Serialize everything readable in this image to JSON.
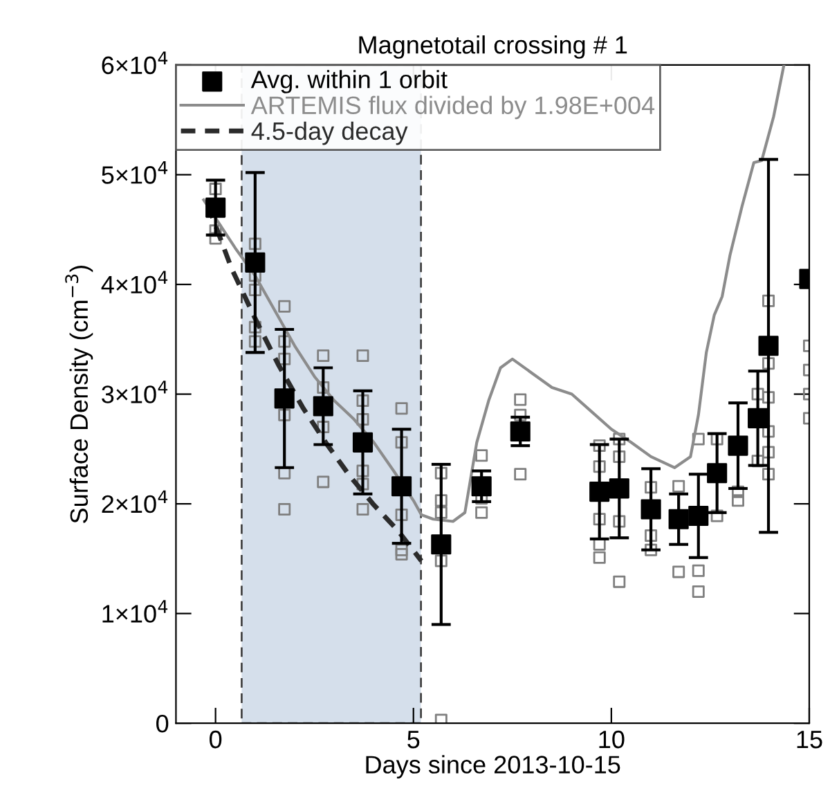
{
  "chart_data": {
    "type": "scatter",
    "title": "Magnetotail crossing # 1",
    "xlabel": "Days since 2013-10-15",
    "ylabel": "Surface Density (cm$^{−3}$)",
    "xlim": [
      -1,
      15
    ],
    "xticks": [
      0,
      5,
      10,
      15
    ],
    "ylim": [
      0,
      60000
    ],
    "yticks": [
      0,
      {
        "value": 10000,
        "label": "1×10$^{4}$"
      },
      {
        "value": 20000,
        "label": "2×10$^{4}$"
      },
      {
        "value": 30000,
        "label": "3×10$^{4}$"
      },
      {
        "value": 40000,
        "label": "4×10$^{4}$"
      },
      {
        "value": 50000,
        "label": "5×10$^{4}$"
      },
      {
        "value": 60000,
        "label": "6×10$^{4}$"
      }
    ],
    "bands": [
      {
        "axis": "x",
        "from": 0.66,
        "to": 5.19,
        "color": "#d5dfeb"
      }
    ],
    "legend": "top left",
    "grid": false,
    "series": [
      {
        "marker": "square",
        "color": "#7f7f7f",
        "x": [
          0,
          0,
          0,
          1.0,
          1.0,
          1.0,
          1.0,
          1.0,
          1.74,
          1.74,
          1.74,
          1.74,
          1.74,
          1.74,
          2.72,
          2.72,
          2.72,
          2.72,
          3.72,
          3.72,
          3.72,
          3.72,
          3.72,
          3.72,
          4.7,
          4.7,
          4.7,
          4.7,
          4.7,
          5.7,
          5.7,
          5.7,
          5.7,
          5.7,
          6.72,
          6.72,
          6.72,
          7.7,
          7.7,
          7.7,
          9.7,
          9.7,
          9.7,
          9.7,
          9.7,
          10.2,
          10.2,
          10.2,
          10.2,
          11.0,
          11.0,
          11.0,
          11.7,
          11.7,
          12.2,
          12.2,
          12.2,
          12.67,
          12.67,
          13.2,
          13.2,
          13.7,
          13.7,
          13.97,
          13.97,
          13.97,
          13.97,
          13.97,
          13.97,
          15,
          15,
          15,
          15
        ],
        "values": [
          48700,
          44900,
          44200,
          43700,
          40800,
          39500,
          36100,
          34800,
          38000,
          34800,
          33200,
          28100,
          22800,
          19500,
          33500,
          30600,
          27000,
          22000,
          33500,
          29400,
          27700,
          23000,
          21800,
          19500,
          28700,
          25600,
          19000,
          15800,
          15400,
          22800,
          20300,
          19200,
          14800,
          300,
          24400,
          20500,
          19200,
          29500,
          28100,
          22700,
          25300,
          23400,
          18600,
          16300,
          15100,
          25900,
          24300,
          18400,
          12900,
          21500,
          17100,
          15800,
          21600,
          13800,
          25900,
          13900,
          12000,
          25900,
          18900,
          21100,
          20300,
          30000,
          23900,
          38500,
          32800,
          29700,
          26600,
          24700,
          22700,
          34400,
          32200,
          30000,
          27800
        ]
      },
      {
        "type": "line",
        "name": "ARTEMIS flux divided by 1.98E+004",
        "color": "#8c8c8c",
        "line_style": "solid",
        "x": [
          -0.3,
          0.5,
          1.0,
          1.5,
          2.0,
          2.5,
          3.0,
          3.5,
          4.0,
          4.5,
          5.0,
          5.2,
          5.5,
          6.0,
          6.3,
          6.6,
          6.9,
          7.2,
          7.5,
          8.0,
          8.5,
          9.0,
          9.5,
          10.0,
          10.5,
          11.0,
          11.6,
          12.0,
          12.2,
          12.4,
          12.6,
          12.8,
          13.0,
          13.3,
          13.6,
          13.8,
          14.1,
          14.36
        ],
        "values": [
          47700,
          43300,
          40800,
          37600,
          34400,
          31600,
          29400,
          27700,
          25600,
          23000,
          20300,
          19000,
          18600,
          18400,
          19200,
          25600,
          29400,
          32400,
          33200,
          31900,
          30600,
          30000,
          28400,
          26800,
          25600,
          24300,
          23300,
          24300,
          28100,
          33800,
          37200,
          38900,
          42700,
          47100,
          51100,
          51300,
          55300,
          60000
        ]
      },
      {
        "type": "line",
        "name": "4.5-day decay",
        "color": "#2b2b2b",
        "line_style": "dashed",
        "x": [
          -0.2,
          0.4,
          1.0,
          1.6,
          2.2,
          2.8,
          3.4,
          4.0,
          4.6,
          5.2
        ],
        "values": [
          47300,
          41500,
          36900,
          32600,
          28800,
          25500,
          22500,
          19900,
          17600,
          14800
        ]
      },
      {
        "name": "Avg. within 1 orbit",
        "marker": "square",
        "color": "#000000",
        "x": [
          0,
          1.0,
          1.74,
          2.72,
          3.72,
          4.7,
          5.7,
          6.72,
          7.7,
          9.7,
          10.2,
          11.0,
          11.7,
          12.2,
          12.67,
          13.2,
          13.7,
          13.97,
          15
        ],
        "values": [
          47000,
          42000,
          29600,
          28900,
          25600,
          21600,
          16300,
          21600,
          26600,
          21100,
          21400,
          19500,
          18600,
          18900,
          22800,
          25300,
          27800,
          34400,
          40500
        ],
        "errors": [
          2500,
          8200,
          6300,
          3500,
          4700,
          5200,
          7300,
          1400,
          1300,
          4300,
          4500,
          3700,
          2300,
          3800,
          3600,
          3900,
          4300,
          17000,
          null
        ]
      }
    ]
  }
}
